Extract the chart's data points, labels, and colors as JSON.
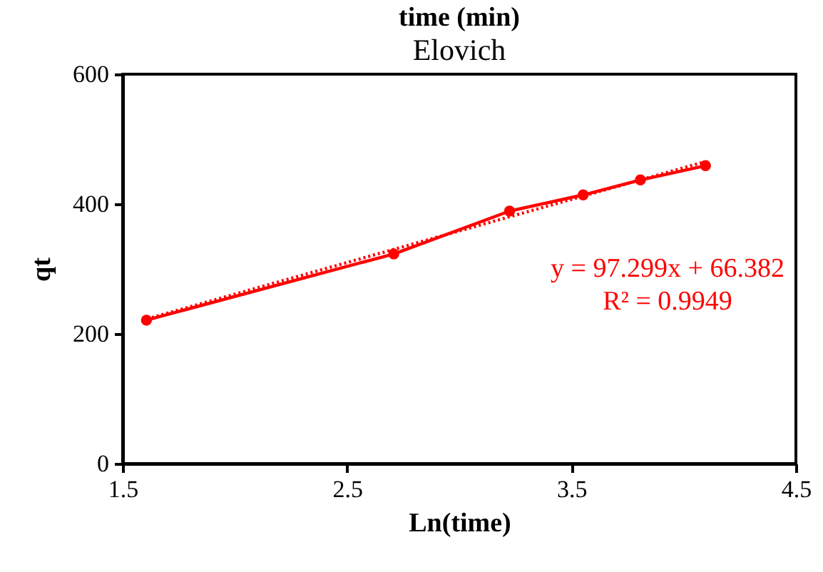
{
  "chart_data": {
    "type": "line",
    "title": "Elovich",
    "xlabel": "Ln(time)",
    "ylabel": "qt",
    "annotations": [
      "time (min)",
      "y = 97.299x + 66.382",
      "R² = 0.9949"
    ],
    "xlim": [
      1.5,
      4.5
    ],
    "xticks": [
      1.5,
      2.5,
      3.5,
      4.5
    ],
    "ylim": [
      0,
      600
    ],
    "yticks": [
      0,
      200,
      400,
      600
    ],
    "grid": false,
    "series": [
      {
        "color": "#ff0000",
        "marker": "circle",
        "line_style": "solid",
        "x": [
          1.606,
          2.708,
          3.224,
          3.552,
          3.807,
          4.097
        ],
        "values": [
          221,
          323,
          389,
          414,
          437,
          459
        ]
      },
      {
        "type": "line",
        "color": "#ff0000",
        "marker": "none",
        "line_style": "dotted",
        "x": [
          1.609,
          4.094
        ],
        "values": [
          223,
          465
        ]
      }
    ]
  }
}
